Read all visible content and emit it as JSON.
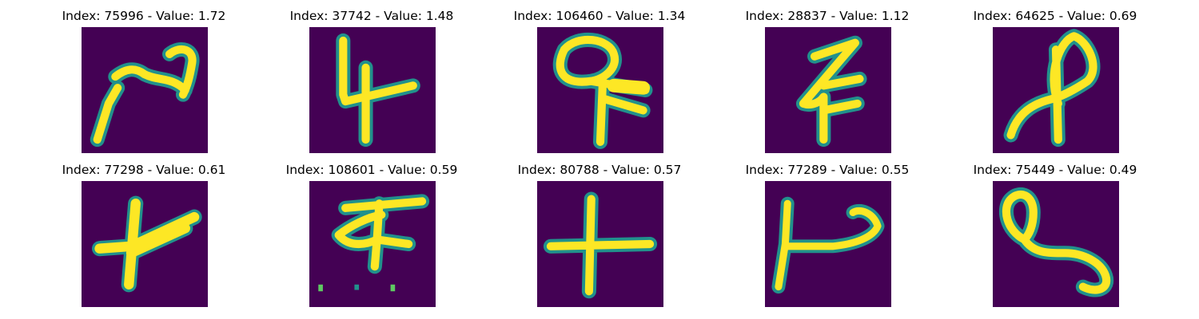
{
  "colors": {
    "background": "#440154",
    "stroke_core": "#fde725",
    "stroke_edge": "#21918c",
    "stroke_mid": "#5ec962"
  },
  "panels": [
    {
      "title": "Index: 75996 - Value: 1.72",
      "glyph": "glyph-75996"
    },
    {
      "title": "Index: 37742 - Value: 1.48",
      "glyph": "glyph-37742"
    },
    {
      "title": "Index: 106460 - Value: 1.34",
      "glyph": "glyph-106460"
    },
    {
      "title": "Index: 28837 - Value: 1.12",
      "glyph": "glyph-28837"
    },
    {
      "title": "Index: 64625 - Value: 0.69",
      "glyph": "glyph-64625"
    },
    {
      "title": "Index: 77298 - Value: 0.61",
      "glyph": "glyph-77298"
    },
    {
      "title": "Index: 108601 - Value: 0.59",
      "glyph": "glyph-108601"
    },
    {
      "title": "Index: 80788 - Value: 0.57",
      "glyph": "glyph-80788"
    },
    {
      "title": "Index: 77289 - Value: 0.55",
      "glyph": "glyph-77289"
    },
    {
      "title": "Index: 75449 - Value: 0.49",
      "glyph": "glyph-75449"
    }
  ]
}
